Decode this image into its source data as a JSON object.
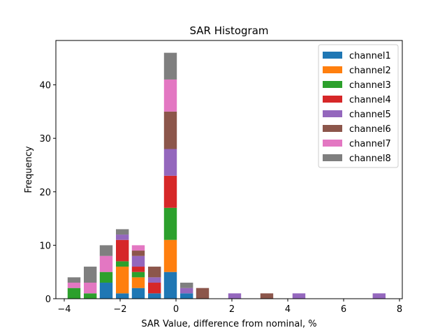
{
  "chart_data": {
    "type": "bar",
    "stacked": true,
    "title": "SAR Histogram",
    "xlabel": "SAR Value, difference from nominal, %",
    "ylabel": "Frequency",
    "xlim": [
      -4.3,
      8.1
    ],
    "ylim": [
      0,
      48.3
    ],
    "xticks": [
      -4,
      -2,
      0,
      2,
      4,
      6,
      8
    ],
    "xtick_labels": [
      "−4",
      "−2",
      "0",
      "2",
      "4",
      "6",
      "8"
    ],
    "yticks": [
      0,
      10,
      20,
      30,
      40
    ],
    "ytick_labels": [
      "0",
      "10",
      "20",
      "30",
      "40"
    ],
    "bin_width": 0.46,
    "bin_centers": [
      -3.65,
      -3.07,
      -2.5,
      -1.92,
      -1.35,
      -0.77,
      -0.2,
      0.38,
      0.95,
      2.1,
      3.25,
      4.4,
      7.27
    ],
    "legend_position": "upper right",
    "series": [
      {
        "name": "channel1",
        "color": "#1f77b4",
        "values": [
          0,
          0,
          3,
          1,
          2,
          1,
          5,
          1,
          0,
          0,
          0,
          0,
          0
        ]
      },
      {
        "name": "channel2",
        "color": "#ff7f0e",
        "values": [
          0,
          0,
          0,
          5,
          2,
          0,
          6,
          0,
          0,
          0,
          0,
          0,
          0
        ]
      },
      {
        "name": "channel3",
        "color": "#2ca02c",
        "values": [
          2,
          1,
          2,
          1,
          1,
          0,
          6,
          0,
          0,
          0,
          0,
          0,
          0
        ]
      },
      {
        "name": "channel4",
        "color": "#d62728",
        "values": [
          0,
          0,
          0,
          4,
          1,
          2,
          6,
          0,
          0,
          0,
          0,
          0,
          0
        ]
      },
      {
        "name": "channel5",
        "color": "#9467bd",
        "values": [
          0,
          0,
          0,
          1,
          2,
          1,
          5,
          1,
          0,
          1,
          0,
          1,
          1
        ]
      },
      {
        "name": "channel6",
        "color": "#8c564b",
        "values": [
          0,
          0,
          0,
          0,
          1,
          2,
          7,
          0,
          2,
          0,
          1,
          0,
          0
        ]
      },
      {
        "name": "channel7",
        "color": "#e377c2",
        "values": [
          1,
          2,
          3,
          0,
          1,
          0,
          6,
          0,
          0,
          0,
          0,
          0,
          0
        ]
      },
      {
        "name": "channel8",
        "color": "#7f7f7f",
        "values": [
          1,
          3,
          2,
          1,
          0,
          0,
          5,
          1,
          0,
          0,
          0,
          0,
          0
        ]
      }
    ]
  }
}
